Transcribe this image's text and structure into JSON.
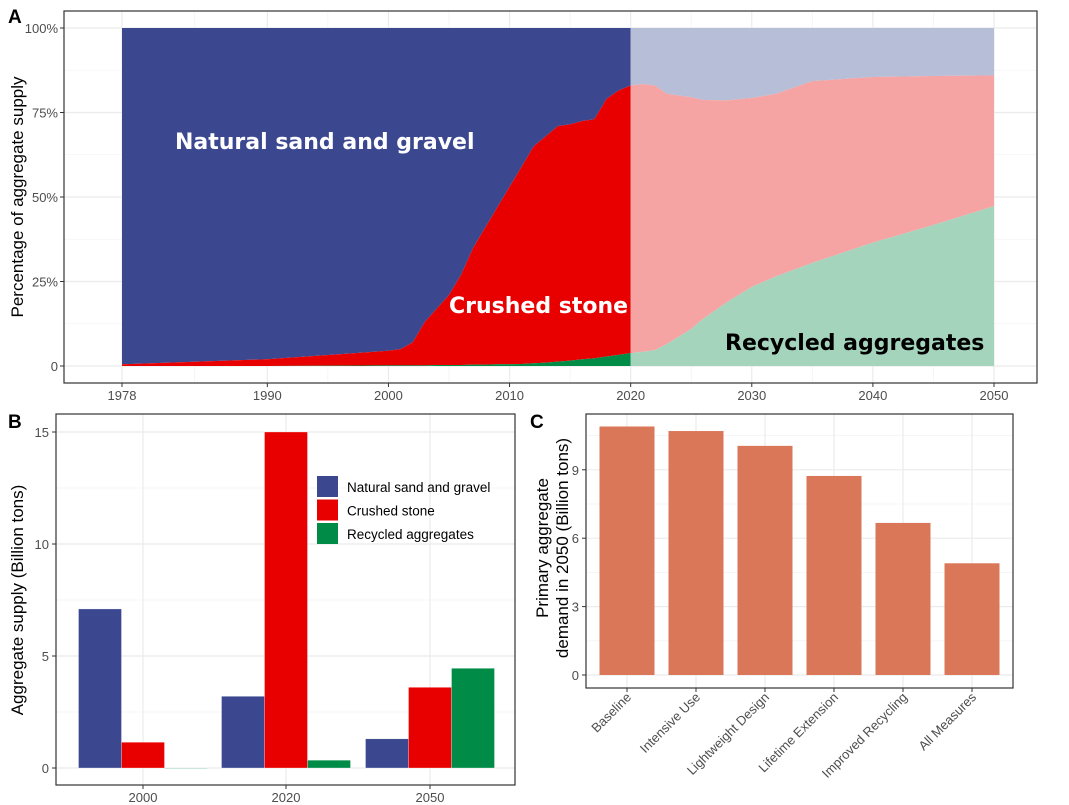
{
  "chart_data": [
    {
      "panel": "A",
      "type": "area",
      "stacked": "percent",
      "ylabel": "Percentage of aggregate supply",
      "xlabel": "",
      "xlim": [
        1978,
        2050
      ],
      "ylim": [
        0,
        100
      ],
      "xticks": [
        "1978",
        "1990",
        "2000",
        "2010",
        "2020",
        "2030",
        "2040",
        "2050"
      ],
      "yticks": [
        "0",
        "25%",
        "50%",
        "75%",
        "100%"
      ],
      "grid": true,
      "annotations": [
        "Natural sand and gravel",
        "Crushed stone",
        "Recycled aggregates"
      ],
      "historical": {
        "x": [
          1978,
          1990,
          2000,
          2001,
          2002,
          2003,
          2004,
          2005,
          2006,
          2007,
          2008,
          2009,
          2010,
          2011,
          2012,
          2013,
          2014,
          2015,
          2016,
          2017,
          2018,
          2019,
          2020
        ],
        "series": [
          {
            "name": "Recycled aggregates",
            "color": "#008c47",
            "values": [
              0,
              0,
              0.2,
              0.2,
              0.2,
              0.2,
              0.3,
              0.3,
              0.3,
              0.4,
              0.4,
              0.5,
              0.5,
              0.6,
              0.8,
              1,
              1.3,
              1.6,
              2,
              2.3,
              2.8,
              3.3,
              3.8
            ]
          },
          {
            "name": "Crushed stone",
            "color": "#e80000",
            "values": [
              0.5,
              2,
              4.3,
              4.8,
              6.8,
              12.8,
              16.7,
              20.7,
              26.7,
              34.6,
              40.6,
              46.5,
              52.5,
              58.4,
              64.2,
              67,
              69.7,
              69.9,
              70.5,
              70.7,
              76.2,
              78.2,
              79.2
            ]
          },
          {
            "name": "Natural sand and gravel",
            "color": "#3b4890",
            "values": "remainder"
          }
        ]
      },
      "projection": {
        "x": [
          2020,
          2021,
          2022,
          2023,
          2025,
          2026,
          2028,
          2030,
          2032,
          2035,
          2040,
          2045,
          2050
        ],
        "series": [
          {
            "name": "Recycled aggregates",
            "color": "#a5d4bd",
            "values": [
              3.8,
              4.2,
              4.7,
              6.5,
              11,
              14,
              19,
              23.4,
              26.5,
              30.5,
              36.5,
              41.7,
              47.3
            ]
          },
          {
            "name": "Crushed stone",
            "color": "#f5a3a3",
            "values": [
              79.2,
              79.2,
              78.3,
              74,
              68.5,
              64.7,
              59.6,
              55.9,
              54,
              53.8,
              49,
              44.1,
              38.7
            ]
          },
          {
            "name": "Natural sand and gravel",
            "color": "#b6bed8",
            "values": "remainder"
          }
        ]
      }
    },
    {
      "panel": "B",
      "type": "bar",
      "ylabel": "Aggregate supply (Billion tons)",
      "xlabel": "",
      "ylim": [
        -0.5,
        15.8
      ],
      "yticks": [
        "0",
        "5",
        "10",
        "15"
      ],
      "categories": [
        "2000",
        "2020",
        "2050"
      ],
      "legend_position": "top-right",
      "series": [
        {
          "name": "Natural sand and gravel",
          "color": "#3b4890",
          "values": [
            7.1,
            3.2,
            1.3
          ]
        },
        {
          "name": "Crushed stone",
          "color": "#e80000",
          "values": [
            1.15,
            15.0,
            3.6
          ]
        },
        {
          "name": "Recycled aggregates",
          "color": "#008c47",
          "values": [
            0,
            0.35,
            4.45
          ]
        }
      ]
    },
    {
      "panel": "C",
      "type": "bar",
      "ylabel_lines": [
        "Primary aggregate",
        "demand in 2050 (Billion tons)"
      ],
      "xlabel": "",
      "ylim": [
        -0.55,
        11.45
      ],
      "yticks": [
        "0",
        "3",
        "6",
        "9"
      ],
      "color": "#da7759",
      "categories": [
        "Baseline",
        "Intensive Use",
        "Lightweight Design",
        "Lifetime Extension",
        "Improved Recycling",
        "All Measures"
      ],
      "values": [
        10.9,
        10.7,
        10.05,
        8.73,
        6.67,
        4.9
      ]
    }
  ]
}
